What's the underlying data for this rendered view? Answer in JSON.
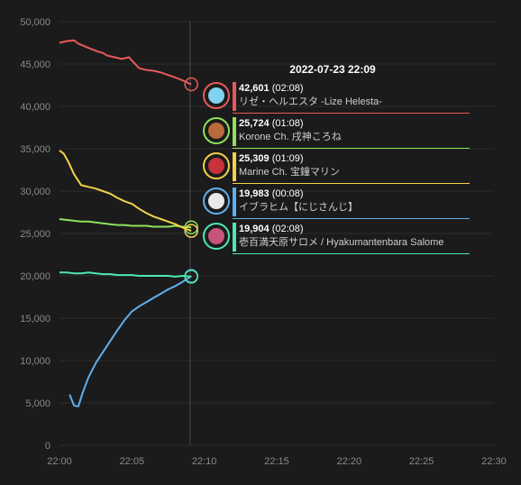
{
  "chart_data": {
    "type": "line",
    "title": "",
    "xlabel": "",
    "ylabel": "",
    "x_ticks": [
      "22:00",
      "22:05",
      "22:10",
      "22:15",
      "22:20",
      "22:25",
      "22:30"
    ],
    "ylim": [
      0,
      50000
    ],
    "y_ticks": [
      "0",
      "5,000",
      "10,000",
      "15,000",
      "20,000",
      "25,000",
      "30,000",
      "35,000",
      "40,000",
      "45,000",
      "50,000"
    ],
    "grid": true,
    "cursor_time": "22:09",
    "series": [
      {
        "name": "リゼ・ヘルエスタ -Lize Helesta-",
        "color": "#e85a5a",
        "x": [
          0.0,
          0.5,
          1.0,
          1.3,
          2.0,
          2.6,
          3.0,
          3.3,
          3.8,
          4.3,
          4.8,
          5.0,
          5.5,
          6.0,
          6.5,
          7.0,
          7.5,
          8.0,
          8.6,
          9.1
        ],
        "values": [
          47500,
          47700,
          47800,
          47400,
          46900,
          46500,
          46300,
          46000,
          45800,
          45600,
          45800,
          45400,
          44500,
          44300,
          44200,
          44000,
          43700,
          43400,
          43000,
          42601
        ]
      },
      {
        "name": "Korone Ch. 戌神ころね",
        "color": "#8ee25a",
        "x": [
          0.0,
          0.5,
          1.0,
          1.5,
          2.0,
          2.5,
          3.0,
          3.5,
          4.0,
          4.5,
          5.0,
          5.5,
          6.0,
          6.5,
          7.0,
          7.5,
          8.0,
          8.5,
          9.1
        ],
        "values": [
          26700,
          26600,
          26500,
          26400,
          26400,
          26300,
          26200,
          26100,
          26000,
          26000,
          25900,
          25900,
          25900,
          25800,
          25800,
          25800,
          25900,
          25800,
          25724
        ]
      },
      {
        "name": "Marine Ch. 宝鐘マリン",
        "color": "#f2d14a",
        "x": [
          0.0,
          0.3,
          0.6,
          1.0,
          1.5,
          2.0,
          2.5,
          3.0,
          3.5,
          4.0,
          4.5,
          5.0,
          5.5,
          6.0,
          6.5,
          7.0,
          7.5,
          8.0,
          8.5,
          9.1
        ],
        "values": [
          34800,
          34400,
          33500,
          32000,
          30700,
          30500,
          30300,
          30000,
          29700,
          29200,
          28800,
          28500,
          27900,
          27400,
          27000,
          26700,
          26400,
          26100,
          25700,
          25309
        ]
      },
      {
        "name": "イブラヒム【にじさんじ】",
        "color": "#5fb0ef",
        "x": [
          0.7,
          1.0,
          1.3,
          1.6,
          2.0,
          2.5,
          3.0,
          3.5,
          4.0,
          4.5,
          5.0,
          5.5,
          6.0,
          6.5,
          7.0,
          7.5,
          8.0,
          8.5,
          9.1
        ],
        "values": [
          6000,
          4700,
          4600,
          6200,
          8000,
          9700,
          11000,
          12300,
          13600,
          14800,
          15800,
          16400,
          16900,
          17400,
          17900,
          18400,
          18800,
          19300,
          19983
        ]
      },
      {
        "name": "壱百満天原サロメ / Hyakumantenbara Salome",
        "color": "#4ee8ae",
        "x": [
          0.0,
          0.5,
          1.0,
          1.5,
          2.0,
          2.5,
          3.0,
          3.5,
          4.0,
          4.5,
          5.0,
          5.5,
          6.0,
          6.5,
          7.0,
          7.5,
          8.0,
          8.5,
          9.1
        ],
        "values": [
          20400,
          20400,
          20300,
          20300,
          20400,
          20300,
          20200,
          20200,
          20100,
          20100,
          20100,
          20000,
          20000,
          20000,
          20000,
          20000,
          19900,
          20000,
          19904
        ]
      }
    ]
  },
  "tooltip": {
    "datetime": "2022-07-23 22:09",
    "rows": [
      {
        "value": "42,601",
        "duration": "(02:08)",
        "name": "リゼ・ヘルエスタ -Lize Helesta-",
        "color": "#e85a5a",
        "avatar_color": "#7fd3f0"
      },
      {
        "value": "25,724",
        "duration": "(01:08)",
        "name": "Korone Ch. 戌神ころね",
        "color": "#8ee25a",
        "avatar_color": "#b86a3a"
      },
      {
        "value": "25,309",
        "duration": "(01:09)",
        "name": "Marine Ch. 宝鐘マリン",
        "color": "#f2d14a",
        "avatar_color": "#c8323c"
      },
      {
        "value": "19,983",
        "duration": "(00:08)",
        "name": "イブラヒム【にじさんじ】",
        "color": "#5fb0ef",
        "avatar_color": "#e9e9e9"
      },
      {
        "value": "19,904",
        "duration": "(02:08)",
        "name": "壱百満天原サロメ / Hyakumantenbara Salome",
        "color": "#4ee8ae",
        "avatar_color": "#c7557a"
      }
    ]
  }
}
